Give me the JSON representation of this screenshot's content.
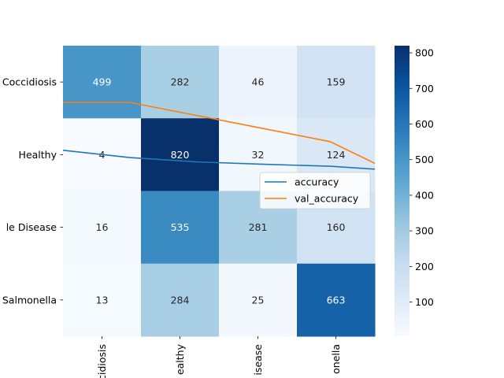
{
  "chart_data": [
    {
      "type": "heatmap",
      "rows": [
        "Coccidiosis",
        "Healthy",
        "New Castle Disease",
        "Salmonella"
      ],
      "columns": [
        "Coccidiosis",
        "Healthy",
        "New Castle Disease",
        "Salmonella"
      ],
      "row_tick_labels": [
        "Coccidiosis",
        "Healthy",
        "le Disease",
        "Salmonella"
      ],
      "col_tick_labels": [
        "cidiosis",
        "ealthy",
        "isease",
        "onella"
      ],
      "values": [
        [
          499,
          282,
          46,
          159
        ],
        [
          4,
          820,
          32,
          124
        ],
        [
          16,
          535,
          281,
          160
        ],
        [
          13,
          284,
          25,
          663
        ]
      ],
      "colormap": "Blues",
      "vmin": 4,
      "vmax": 820,
      "colorbar_ticks": [
        100,
        200,
        300,
        400,
        500,
        600,
        700,
        800
      ]
    },
    {
      "type": "line",
      "x": [
        0,
        1,
        2,
        3,
        4,
        5
      ],
      "series": [
        {
          "name": "accuracy",
          "color": "#1f77b4",
          "values": [
            0.64,
            0.615,
            0.6,
            0.592,
            0.585,
            0.575
          ]
        },
        {
          "name": "val_accuracy",
          "color": "#ff7f0e",
          "values": [
            0.805,
            0.805,
            0.76,
            0.715,
            0.67,
            0.595
          ]
        }
      ],
      "legend_position": "center-right",
      "ylim": [
        0,
        1
      ]
    }
  ]
}
